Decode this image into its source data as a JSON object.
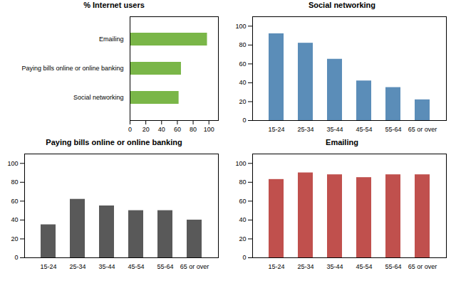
{
  "chart_data": [
    {
      "type": "bar",
      "title": "% Internet users",
      "orientation": "horizontal",
      "categories": [
        "Social networking",
        "Paying bills online or online banking",
        "Emailing"
      ],
      "values": [
        62,
        65,
        98
      ],
      "color": "#7ab648",
      "xlim": [
        0,
        112
      ],
      "xticks": [
        0,
        20,
        40,
        60,
        80,
        100
      ],
      "grid": false
    },
    {
      "type": "bar",
      "title": "Social networking",
      "categories": [
        "15-24",
        "25-34",
        "35-44",
        "45-54",
        "55-64",
        "65 or over"
      ],
      "values": [
        92,
        82,
        65,
        42,
        35,
        22
      ],
      "color": "#5b8db8",
      "ylim": [
        0,
        110
      ],
      "yticks": [
        0,
        20,
        40,
        60,
        80,
        100
      ],
      "grid": false
    },
    {
      "type": "bar",
      "title": "Paying bills online or online banking",
      "categories": [
        "15-24",
        "25-34",
        "35-44",
        "45-54",
        "55-64",
        "65 or over"
      ],
      "values": [
        35,
        62,
        55,
        50,
        50,
        40
      ],
      "color": "#595959",
      "ylim": [
        0,
        110
      ],
      "yticks": [
        0,
        20,
        40,
        60,
        80,
        100
      ],
      "grid": false
    },
    {
      "type": "bar",
      "title": "Emailing",
      "categories": [
        "15-24",
        "25-34",
        "35-44",
        "45-54",
        "55-64",
        "65 or over"
      ],
      "values": [
        83,
        90,
        88,
        85,
        88,
        88
      ],
      "color": "#c0504d",
      "ylim": [
        0,
        110
      ],
      "yticks": [
        0,
        20,
        40,
        60,
        80,
        100
      ],
      "grid": false
    }
  ]
}
